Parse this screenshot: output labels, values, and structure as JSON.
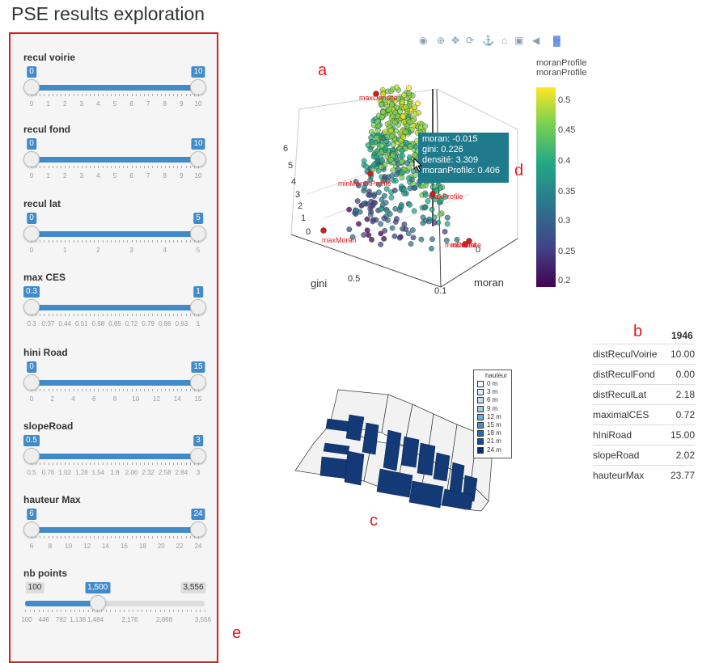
{
  "page_title": "PSE results exploration",
  "sliders": [
    {
      "label": "recul voirie",
      "low": "0",
      "high": "10",
      "ticks": [
        "0",
        "1",
        "2",
        "3",
        "4",
        "5",
        "6",
        "7",
        "8",
        "9",
        "10"
      ]
    },
    {
      "label": "recul fond",
      "low": "0",
      "high": "10",
      "ticks": [
        "0",
        "1",
        "2",
        "3",
        "4",
        "5",
        "6",
        "7",
        "8",
        "9",
        "10"
      ]
    },
    {
      "label": "recul lat",
      "low": "0",
      "high": "5",
      "ticks": [
        "0",
        "1",
        "2",
        "3",
        "4",
        "5"
      ]
    },
    {
      "label": "max CES",
      "low": "0.3",
      "high": "1",
      "ticks": [
        "0.3",
        "0.37",
        "0.44",
        "0.51",
        "0.58",
        "0.65",
        "0.72",
        "0.79",
        "0.86",
        "0.93",
        "1"
      ]
    },
    {
      "label": "hini Road",
      "low": "0",
      "high": "15",
      "ticks": [
        "0",
        "2",
        "4",
        "6",
        "8",
        "10",
        "12",
        "14",
        "15"
      ]
    },
    {
      "label": "slopeRoad",
      "low": "0.5",
      "high": "3",
      "ticks": [
        "0.5",
        "0.76",
        "1.02",
        "1.28",
        "1.54",
        "1.8",
        "2.06",
        "2.32",
        "2.58",
        "2.84",
        "3"
      ]
    },
    {
      "label": "hauteur Max",
      "low": "6",
      "high": "24",
      "ticks": [
        "6",
        "8",
        "10",
        "12",
        "14",
        "16",
        "18",
        "20",
        "22",
        "24"
      ]
    }
  ],
  "nb_points": {
    "label": "nb points",
    "min": "100",
    "value": "1,500",
    "max": "3,556",
    "fraction": 0.404,
    "ticks": [
      "100",
      "446",
      "792",
      "1,138",
      "1,484",
      "2,176",
      "2,868",
      "3,556"
    ]
  },
  "panel_letters": {
    "a": "a",
    "b": "b",
    "c": "c",
    "d": "d",
    "e": "e"
  },
  "toolbar_icons": [
    "camera-icon",
    "zoom-icon",
    "pan-icon",
    "orbit-icon",
    "turntable-icon",
    "home-icon",
    "reset-camera-icon",
    "toggle-spike-icon",
    "plotly-logo-icon"
  ],
  "scatter3d": {
    "axis_labels": {
      "x": "moran",
      "y": "gini",
      "z": ""
    },
    "z_ticks": [
      "0",
      "1",
      "2",
      "3",
      "4",
      "5",
      "6"
    ],
    "x_tick": "0.1",
    "y_tick": "0.5",
    "point_labels": [
      "maxDensite",
      "minMoranProfile",
      "maxMoran",
      "minDensite",
      "maxProfile",
      "minGini"
    ],
    "tooltip": {
      "moran": "moran:  -0.015",
      "gini": "gini:  0.226",
      "densite": "densité:  3.309",
      "moranProfile": "moranProfile: 0.406"
    }
  },
  "colorbar": {
    "title_line1": "moranProfile",
    "title_line2": "moranProfile",
    "ticks": [
      "0.5",
      "0.45",
      "0.4",
      "0.35",
      "0.3",
      "0.25",
      "0.2"
    ]
  },
  "stats_table": {
    "header": "1946",
    "rows": [
      {
        "name": "distReculVoirie",
        "value": "10.00"
      },
      {
        "name": "distReculFond",
        "value": "0.00"
      },
      {
        "name": "distReculLat",
        "value": "2.18"
      },
      {
        "name": "maximalCES",
        "value": "0.72"
      },
      {
        "name": "hIniRoad",
        "value": "15.00"
      },
      {
        "name": "slopeRoad",
        "value": "2.02"
      },
      {
        "name": "hauteurMax",
        "value": "23.77"
      }
    ]
  },
  "map_legend": {
    "title": "hauteur",
    "items": [
      {
        "label": "0 m",
        "color": "#f7fbff"
      },
      {
        "label": "3 m",
        "color": "#deebf7"
      },
      {
        "label": "6 m",
        "color": "#c6dbef"
      },
      {
        "label": "9 m",
        "color": "#9ecae1"
      },
      {
        "label": "12 m",
        "color": "#6baed6"
      },
      {
        "label": "15 m",
        "color": "#4292c6"
      },
      {
        "label": "18 m",
        "color": "#2171b5"
      },
      {
        "label": "21 m",
        "color": "#08519c"
      },
      {
        "label": "24 m",
        "color": "#08306b"
      }
    ]
  }
}
